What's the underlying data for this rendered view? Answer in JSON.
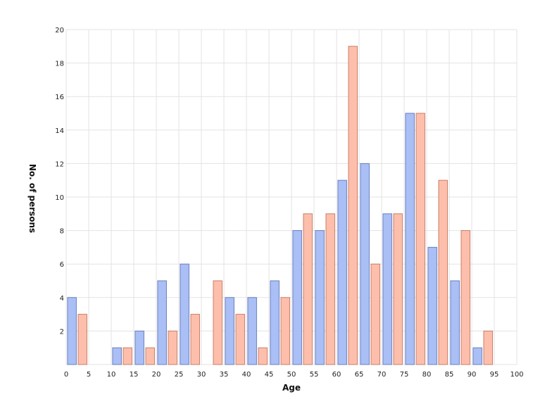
{
  "chart_data": {
    "type": "bar",
    "title": "",
    "xlabel": "Age",
    "ylabel": "No. of persons",
    "xlim": [
      0,
      100
    ],
    "ylim": [
      0,
      20
    ],
    "x_ticks": [
      0,
      5,
      10,
      15,
      20,
      25,
      30,
      35,
      40,
      45,
      50,
      55,
      60,
      65,
      70,
      75,
      80,
      85,
      90,
      95,
      100
    ],
    "y_ticks": [
      2,
      4,
      6,
      8,
      10,
      12,
      14,
      16,
      18,
      20
    ],
    "grid": true,
    "legend": "none",
    "bin_starts": [
      0,
      5,
      10,
      15,
      20,
      25,
      30,
      35,
      40,
      45,
      50,
      55,
      60,
      65,
      70,
      75,
      80,
      85,
      90
    ],
    "bin_width": 5,
    "series": [
      {
        "color": "#aabff5",
        "edge_color": "#6a7fc0",
        "values": [
          4,
          0,
          1,
          2,
          5,
          6,
          0,
          4,
          4,
          5,
          8,
          8,
          11,
          12,
          9,
          15,
          7,
          5,
          1
        ]
      },
      {
        "color": "#fdbfab",
        "edge_color": "#c97e69",
        "values": [
          3,
          0,
          1,
          1,
          2,
          3,
          5,
          3,
          1,
          4,
          9,
          9,
          19,
          6,
          9,
          15,
          11,
          8,
          2
        ]
      }
    ]
  }
}
